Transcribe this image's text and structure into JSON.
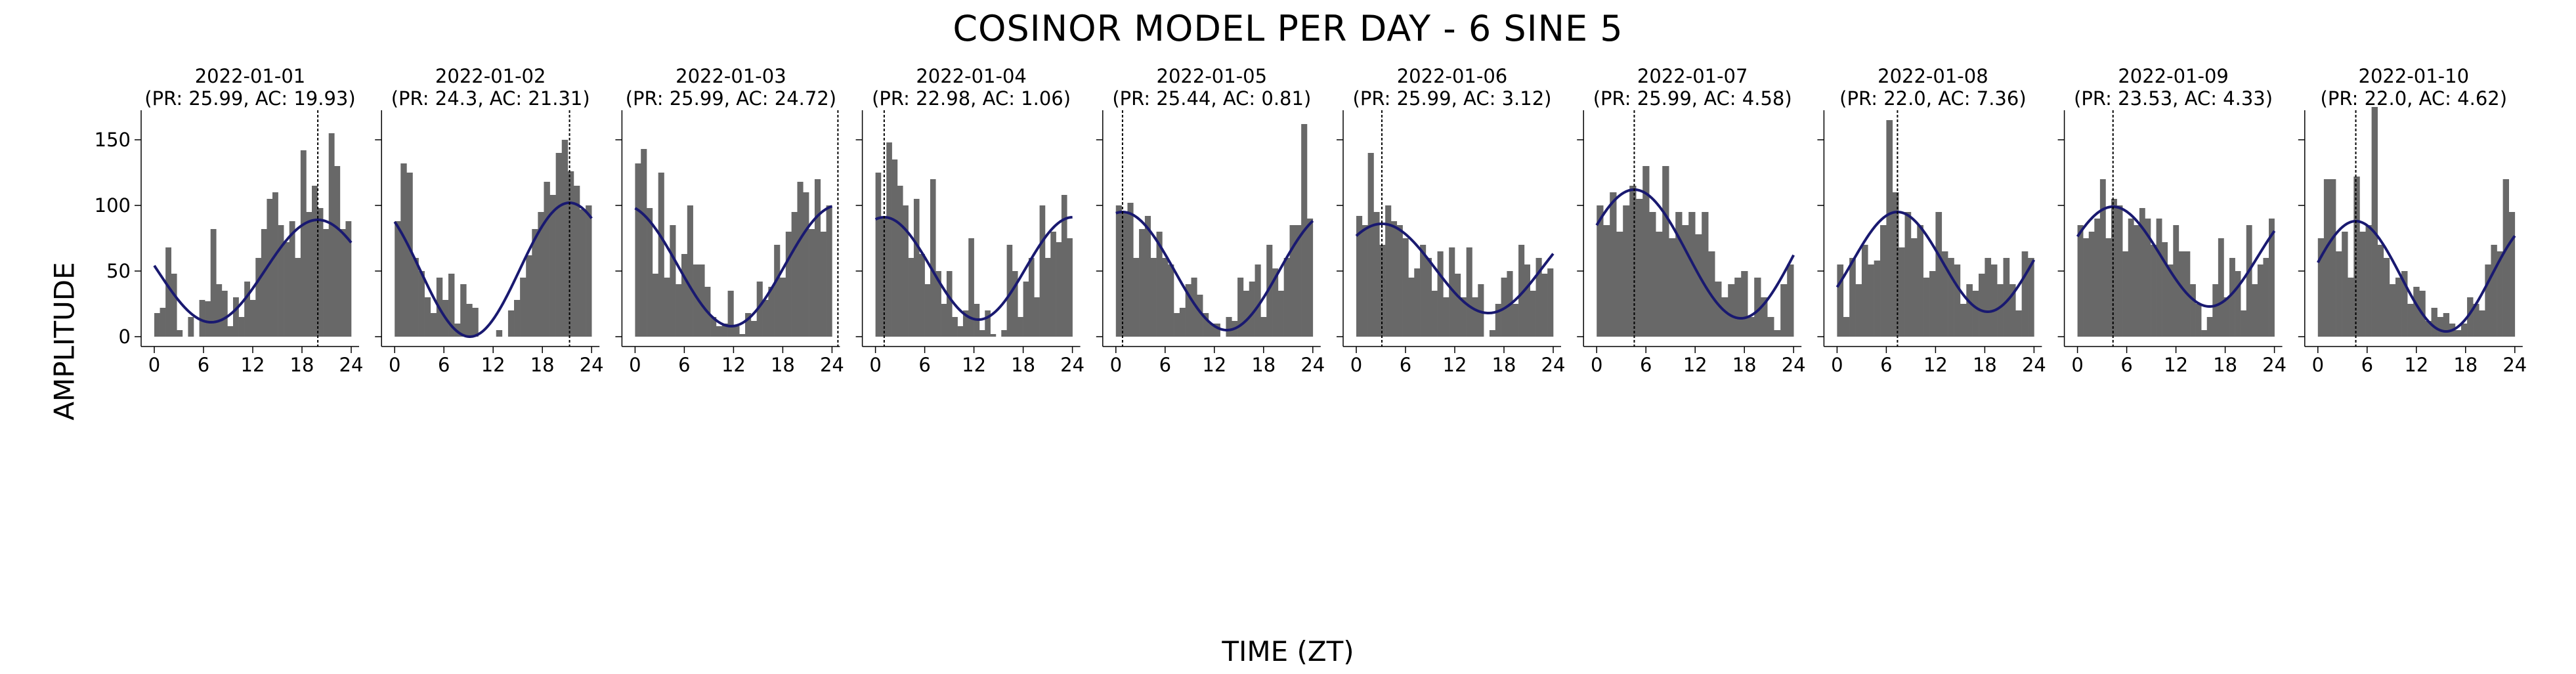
{
  "figure": {
    "title": "COSINOR MODEL PER DAY - 6 SINE 5",
    "xlabel": "TIME (ZT)",
    "ylabel": "AMPLITUDE"
  },
  "colors": {
    "bars": "#686868",
    "fit": "#191970",
    "acrophase_line": "#000000",
    "axis": "#000000"
  },
  "chart_data": {
    "type": "bar",
    "subtype": "histogram with cosinor fit per day (small multiples)",
    "xlim": [
      0,
      24
    ],
    "ylim": [
      0,
      170
    ],
    "xticks": [
      0,
      6,
      12,
      18,
      24
    ],
    "yticks": [
      0,
      50,
      100,
      150
    ],
    "grid": false,
    "panels": [
      {
        "date": "2022-01-01",
        "subtitle": "(PR: 25.99, AC: 19.93)",
        "mesor": 50,
        "amplitude": 39,
        "acrophase": 19.93,
        "period": 25.99,
        "values": [
          18,
          22,
          68,
          48,
          5,
          0,
          15,
          0,
          28,
          27,
          82,
          40,
          35,
          8,
          30,
          15,
          42,
          28,
          60,
          82,
          105,
          110,
          85,
          72,
          88,
          60,
          142,
          95,
          115,
          98,
          82,
          155,
          130,
          82,
          88
        ]
      },
      {
        "date": "2022-01-02",
        "subtitle": "(PR: 24.3, AC: 21.31)",
        "mesor": 51,
        "amplitude": 51,
        "acrophase": 21.31,
        "period": 24.3,
        "values": [
          88,
          132,
          125,
          60,
          50,
          30,
          18,
          45,
          28,
          48,
          10,
          40,
          25,
          22,
          0,
          0,
          0,
          5,
          0,
          20,
          28,
          45,
          62,
          82,
          95,
          118,
          108,
          140,
          150,
          126,
          115,
          97,
          100
        ]
      },
      {
        "date": "2022-01-03",
        "subtitle": "(PR: 25.99, AC: 24.72)",
        "mesor": 54,
        "amplitude": 46,
        "acrophase": 24.72,
        "period": 25.99,
        "values": [
          132,
          143,
          98,
          48,
          125,
          45,
          85,
          40,
          63,
          100,
          55,
          55,
          38,
          15,
          8,
          10,
          35,
          8,
          2,
          18,
          12,
          42,
          28,
          38,
          70,
          45,
          80,
          95,
          118,
          110,
          82,
          120,
          80,
          100
        ]
      },
      {
        "date": "2022-01-04",
        "subtitle": "(PR: 22.98, AC: 1.06)",
        "mesor": 52,
        "amplitude": 39,
        "acrophase": 1.06,
        "period": 22.98,
        "values": [
          125,
          90,
          148,
          135,
          115,
          100,
          60,
          105,
          63,
          40,
          120,
          50,
          25,
          50,
          15,
          8,
          20,
          75,
          25,
          5,
          20,
          2,
          0,
          5,
          70,
          50,
          15,
          42,
          60,
          30,
          100,
          60,
          80,
          72,
          108,
          75
        ]
      },
      {
        "date": "2022-01-05",
        "subtitle": "(PR: 25.44, AC: 0.81)",
        "mesor": 50,
        "amplitude": 45,
        "acrophase": 0.81,
        "period": 25.44,
        "values": [
          100,
          95,
          102,
          60,
          82,
          92,
          60,
          80,
          60,
          55,
          18,
          22,
          40,
          45,
          32,
          18,
          10,
          10,
          0,
          15,
          12,
          45,
          35,
          42,
          55,
          15,
          70,
          52,
          35,
          60,
          85,
          85,
          162,
          90
        ]
      },
      {
        "date": "2022-01-06",
        "subtitle": "(PR: 25.99, AC: 3.12)",
        "mesor": 52,
        "amplitude": 34,
        "acrophase": 3.12,
        "period": 25.99,
        "values": [
          92,
          85,
          140,
          95,
          70,
          100,
          88,
          85,
          75,
          45,
          52,
          70,
          60,
          35,
          65,
          30,
          68,
          48,
          30,
          68,
          30,
          40,
          0,
          5,
          25,
          45,
          50,
          25,
          70,
          55,
          35,
          60,
          48,
          52
        ]
      },
      {
        "date": "2022-01-07",
        "subtitle": "(PR: 25.99, AC: 4.58)",
        "mesor": 63,
        "amplitude": 49,
        "acrophase": 4.58,
        "period": 25.99,
        "values": [
          100,
          85,
          110,
          80,
          100,
          115,
          105,
          130,
          95,
          80,
          130,
          75,
          95,
          85,
          95,
          78,
          95,
          65,
          42,
          30,
          40,
          45,
          50,
          15,
          45,
          30,
          15,
          5,
          40,
          55
        ]
      },
      {
        "date": "2022-01-08",
        "subtitle": "(PR: 22.0, AC: 7.36)",
        "mesor": 57,
        "amplitude": 38,
        "acrophase": 7.36,
        "period": 22.0,
        "values": [
          55,
          15,
          60,
          40,
          70,
          55,
          58,
          85,
          165,
          110,
          68,
          95,
          75,
          85,
          45,
          50,
          95,
          65,
          60,
          55,
          25,
          40,
          35,
          48,
          60,
          55,
          40,
          60,
          40,
          20,
          65,
          60
        ]
      },
      {
        "date": "2022-01-09",
        "subtitle": "(PR: 23.53, AC: 4.33)",
        "mesor": 61,
        "amplitude": 38,
        "acrophase": 4.33,
        "period": 23.53,
        "values": [
          85,
          75,
          80,
          90,
          120,
          75,
          105,
          100,
          65,
          90,
          85,
          98,
          90,
          70,
          90,
          72,
          55,
          85,
          65,
          65,
          40,
          25,
          5,
          15,
          40,
          75,
          30,
          60,
          50,
          20,
          85,
          40,
          55,
          60,
          90
        ]
      },
      {
        "date": "2022-01-10",
        "subtitle": "(PR: 22.0, AC: 4.62)",
        "mesor": 46,
        "amplitude": 42,
        "acrophase": 4.62,
        "period": 22.0,
        "values": [
          75,
          120,
          120,
          65,
          80,
          45,
          122,
          80,
          85,
          175,
          70,
          60,
          40,
          45,
          50,
          25,
          38,
          35,
          12,
          22,
          15,
          18,
          10,
          5,
          10,
          30,
          25,
          20,
          55,
          70,
          65,
          120,
          95
        ]
      }
    ]
  }
}
